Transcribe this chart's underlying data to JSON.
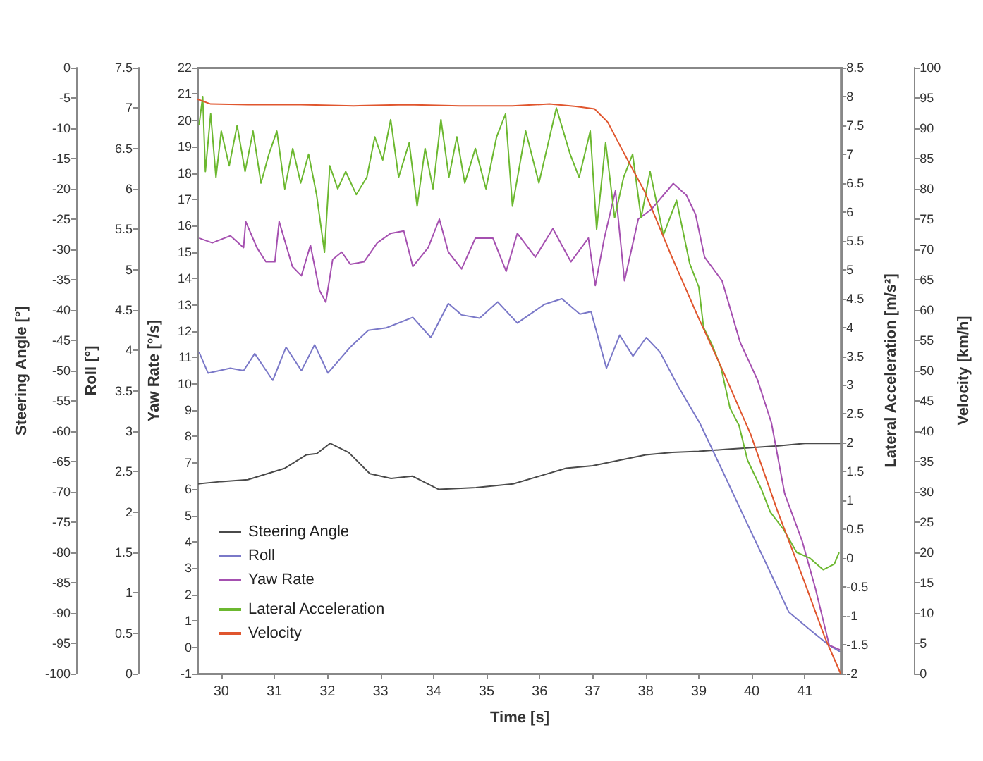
{
  "chart_data": [
    {
      "type": "line",
      "xlabel": "Time [s]",
      "ylabel": "Steering Angle [°]",
      "y2label": "Roll [°]",
      "y3label": "Yaw Rate [°/s]",
      "xlim": [
        29.55,
        41.7
      ],
      "xticks": [
        30,
        31,
        32,
        33,
        34,
        35,
        36,
        37,
        38,
        39,
        40,
        41
      ],
      "ylim": [
        -100,
        0
      ],
      "yticks": [
        -100,
        -95,
        -90,
        -85,
        -80,
        -75,
        -70,
        -65,
        -60,
        -55,
        -50,
        -45,
        -40,
        -35,
        -30,
        -25,
        -20,
        -15,
        -10,
        -5,
        0
      ],
      "y2lim": [
        0,
        7.5
      ],
      "y2ticks": [
        0,
        0.5,
        1,
        1.5,
        2,
        2.5,
        3,
        3.5,
        4,
        4.5,
        5,
        5.5,
        6,
        6.5,
        7,
        7.5
      ],
      "y3lim": [
        -1,
        22
      ],
      "y3ticks": [
        -1,
        0,
        1,
        2,
        3,
        4,
        5,
        6,
        7,
        8,
        9,
        10,
        11,
        12,
        13,
        14,
        15,
        16,
        17,
        18,
        19,
        20,
        21,
        22
      ],
      "grid": false,
      "legend": "bottom left",
      "marker": "none",
      "line_style": "solid",
      "series": [
        {
          "name": "Steering Angle",
          "color": "#4a4a4a",
          "x": [
            29.55,
            30,
            30.5,
            31.2,
            31.6,
            31.8,
            32.05,
            32.4,
            32.8,
            33.2,
            33.6,
            34.1,
            34.8,
            35.5,
            36,
            36.5,
            37,
            37.5,
            38,
            38.5,
            39,
            39.5,
            40.5,
            41,
            41.7
          ],
          "values": [
            -68.7,
            -68.3,
            -68,
            -66.1,
            -63.9,
            -63.7,
            -62,
            -63.5,
            -67,
            -67.8,
            -67.4,
            -69.6,
            -69.3,
            -68.7,
            -67.4,
            -66.1,
            -65.7,
            -64.8,
            -63.9,
            -63.5,
            -63.3,
            -63,
            -62.4,
            -62,
            -62
          ]
        },
        {
          "name": "Roll",
          "color": "#7a78c8",
          "axis": "y2",
          "x": [
            29.58,
            29.75,
            30.17,
            30.42,
            30.63,
            30.97,
            31.22,
            31.51,
            31.76,
            32.01,
            32.43,
            32.77,
            33.11,
            33.61,
            33.95,
            34.28,
            34.53,
            34.87,
            35.21,
            35.58,
            36.09,
            36.42,
            36.76,
            36.97,
            37.26,
            37.51,
            37.76,
            38.01,
            38.27,
            38.6,
            39.02,
            39.44,
            39.86,
            40.28,
            40.7,
            41.12,
            41.46,
            41.67
          ],
          "values": [
            3.98,
            3.72,
            3.78,
            3.75,
            3.96,
            3.63,
            4.04,
            3.75,
            4.07,
            3.72,
            4.04,
            4.25,
            4.28,
            4.41,
            4.16,
            4.58,
            4.44,
            4.4,
            4.6,
            4.34,
            4.57,
            4.64,
            4.45,
            4.48,
            3.78,
            4.19,
            3.93,
            4.16,
            3.98,
            3.57,
            3.1,
            2.52,
            1.93,
            1.35,
            0.76,
            0.53,
            0.35,
            0.27
          ]
        },
        {
          "name": "Yaw Rate",
          "color": "#a550b0",
          "axis": "y3",
          "x": [
            29.58,
            29.83,
            30.17,
            30.42,
            30.46,
            30.67,
            30.84,
            31.01,
            31.09,
            31.34,
            31.51,
            31.68,
            31.85,
            31.97,
            32.1,
            32.27,
            32.43,
            32.69,
            32.94,
            33.19,
            33.44,
            33.61,
            33.9,
            34.11,
            34.28,
            34.53,
            34.79,
            35.12,
            35.37,
            35.58,
            35.92,
            36.25,
            36.59,
            36.92,
            37.05,
            37.22,
            37.43,
            37.6,
            37.86,
            38.1,
            38.52,
            38.77,
            38.94,
            39.11,
            39.44,
            39.78,
            40.11,
            40.37,
            40.62,
            40.95,
            41.2,
            41.46,
            41.67
          ],
          "values": [
            15.53,
            15.35,
            15.62,
            15.17,
            16.16,
            15.17,
            14.63,
            14.63,
            16.16,
            14.45,
            14.1,
            15.26,
            13.55,
            13.1,
            14.72,
            15,
            14.54,
            14.63,
            15.35,
            15.71,
            15.8,
            14.45,
            15.17,
            16.25,
            15,
            14.36,
            15.53,
            15.53,
            14.27,
            15.71,
            14.81,
            15.89,
            14.63,
            15.53,
            13.73,
            15.53,
            17.33,
            13.91,
            16.25,
            16.61,
            17.6,
            17.15,
            16.43,
            14.81,
            13.91,
            11.58,
            10.14,
            8.52,
            5.83,
            4.03,
            2.23,
            0.08,
            -0.1
          ]
        }
      ]
    },
    {
      "type": "line",
      "ylabel": "Lateral Acceleration [m/s²]",
      "y2label": "Velocity [km/h]",
      "tick_labels": "y",
      "xlim": [
        29.55,
        41.7
      ],
      "ylim": [
        -2,
        8.5
      ],
      "yticks": [
        -2,
        -1.5,
        -1,
        -0.5,
        0,
        0.5,
        1,
        1.5,
        2,
        2.5,
        3,
        3.5,
        4,
        4.5,
        5,
        5.5,
        6,
        6.5,
        7,
        7.5,
        8,
        8.5
      ],
      "y2lim": [
        0,
        100
      ],
      "y2ticks": [
        0,
        5,
        10,
        15,
        20,
        25,
        30,
        35,
        40,
        45,
        50,
        55,
        60,
        65,
        70,
        75,
        80,
        85,
        90,
        95,
        100
      ],
      "grid": false,
      "legend": "bottom left",
      "marker": "none",
      "line_style": "solid",
      "series": [
        {
          "name": "Lateral Acceleration",
          "color": "#6cb830",
          "x": [
            29.58,
            29.65,
            29.7,
            29.8,
            29.9,
            30,
            30.15,
            30.3,
            30.45,
            30.6,
            30.75,
            30.9,
            31.05,
            31.2,
            31.35,
            31.5,
            31.65,
            31.8,
            31.95,
            32.05,
            32.2,
            32.35,
            32.55,
            32.75,
            32.9,
            33.05,
            33.2,
            33.35,
            33.55,
            33.7,
            33.85,
            34,
            34.15,
            34.3,
            34.45,
            34.6,
            34.8,
            35,
            35.2,
            35.37,
            35.5,
            35.75,
            36,
            36.33,
            36.59,
            36.76,
            36.97,
            37.09,
            37.26,
            37.43,
            37.6,
            37.77,
            37.93,
            38.1,
            38.35,
            38.6,
            38.85,
            39.02,
            39.11,
            39.27,
            39.44,
            39.61,
            39.78,
            39.94,
            40.2,
            40.37,
            40.62,
            40.87,
            41.12,
            41.37,
            41.58,
            41.67
          ],
          "values": [
            7.5,
            8,
            6.7,
            7.7,
            6.6,
            7.4,
            6.8,
            7.5,
            6.7,
            7.4,
            6.5,
            7,
            7.4,
            6.4,
            7.1,
            6.5,
            7,
            6.3,
            5.3,
            6.8,
            6.4,
            6.7,
            6.3,
            6.6,
            7.3,
            6.9,
            7.6,
            6.6,
            7.2,
            6.1,
            7.1,
            6.4,
            7.6,
            6.6,
            7.3,
            6.5,
            7.1,
            6.4,
            7.3,
            7.7,
            6.1,
            7.4,
            6.5,
            7.8,
            7,
            6.6,
            7.4,
            5.7,
            7.2,
            5.9,
            6.6,
            7,
            5.9,
            6.7,
            5.6,
            6.2,
            5.1,
            4.7,
            4,
            3.7,
            3.3,
            2.6,
            2.3,
            1.7,
            1.2,
            0.8,
            0.5,
            0.1,
            0,
            -0.2,
            -0.1,
            0.1
          ]
        },
        {
          "name": "Velocity",
          "color": "#e0562e",
          "axis": "y2",
          "x": [
            29.55,
            29.8,
            30.5,
            31.5,
            32.5,
            33.5,
            34.5,
            35.5,
            36.2,
            36.7,
            37.05,
            37.3,
            37.6,
            38,
            38.5,
            39,
            39.5,
            40,
            40.5,
            41,
            41.4,
            41.7
          ],
          "values": [
            94.8,
            94,
            93.9,
            93.9,
            93.7,
            93.9,
            93.7,
            93.7,
            94,
            93.6,
            93.2,
            91,
            86,
            79.5,
            69,
            59,
            49.5,
            39.5,
            27,
            15.5,
            6,
            0
          ]
        }
      ]
    }
  ]
}
